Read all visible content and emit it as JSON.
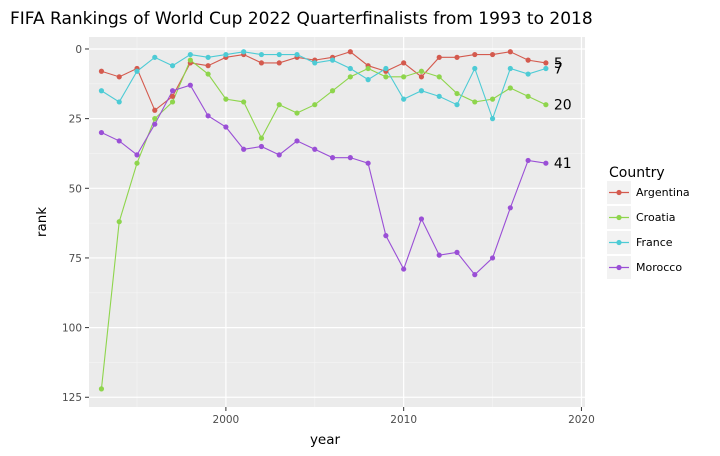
{
  "chart_data": {
    "type": "line",
    "title": "FIFA Rankings of World Cup 2022 Quarterfinalists from 1993 to 2018",
    "xlabel": "year",
    "ylabel": "rank",
    "xlim": [
      1992.3,
      2020.2
    ],
    "ylim": [
      128.5,
      -4.3
    ],
    "y_reversed": true,
    "x_ticks": [
      2000,
      2010,
      2020
    ],
    "x_tick_labels": [
      "2000",
      "2010",
      "2020"
    ],
    "y_ticks": [
      0,
      25,
      50,
      75,
      100,
      125
    ],
    "y_tick_labels": [
      "0",
      "25",
      "50",
      "75",
      "100",
      "125"
    ],
    "grid": true,
    "legend": {
      "title": "Country",
      "position": "right"
    },
    "x": [
      1993,
      1994,
      1995,
      1996,
      1997,
      1998,
      1999,
      2000,
      2001,
      2002,
      2003,
      2004,
      2005,
      2006,
      2007,
      2008,
      2009,
      2010,
      2011,
      2012,
      2013,
      2014,
      2015,
      2016,
      2017,
      2018
    ],
    "series": [
      {
        "name": "Argentina",
        "color": "#d45a4e",
        "end_label": "5",
        "values": [
          8,
          10,
          7,
          22,
          17,
          5,
          6,
          3,
          2,
          5,
          5,
          3,
          4,
          3,
          1,
          6,
          8,
          5,
          10,
          3,
          3,
          2,
          2,
          1,
          4,
          5
        ]
      },
      {
        "name": "Croatia",
        "color": "#8ed54c",
        "end_label": "20",
        "values": [
          122,
          62,
          41,
          25,
          19,
          4,
          9,
          18,
          19,
          32,
          20,
          23,
          20,
          15,
          10,
          7,
          10,
          10,
          8,
          10,
          16,
          19,
          18,
          14,
          17,
          20
        ]
      },
      {
        "name": "France",
        "color": "#4dcbd5",
        "end_label": "7",
        "values": [
          15,
          19,
          8,
          3,
          6,
          2,
          3,
          2,
          1,
          2,
          2,
          2,
          5,
          4,
          7,
          11,
          7,
          18,
          15,
          17,
          20,
          7,
          25,
          7,
          9,
          7
        ]
      },
      {
        "name": "Morocco",
        "color": "#9a4fd6",
        "end_label": "41",
        "values": [
          30,
          33,
          38,
          27,
          15,
          13,
          24,
          28,
          36,
          35,
          38,
          33,
          36,
          39,
          39,
          41,
          67,
          79,
          61,
          74,
          73,
          81,
          75,
          57,
          40,
          41
        ]
      }
    ]
  }
}
